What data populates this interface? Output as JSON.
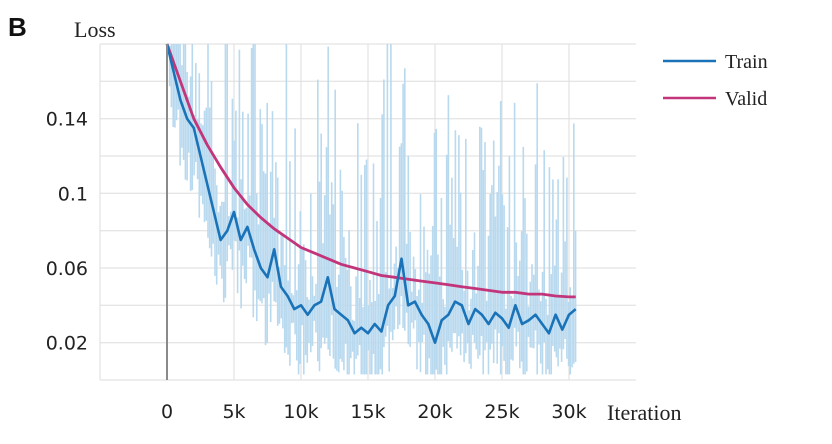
{
  "panel_label": "B",
  "chart_data": {
    "type": "line",
    "ylabel": "Loss",
    "xlabel": "Iteration",
    "xlim": [
      -5000,
      35000
    ],
    "ylim": [
      0.0,
      0.18
    ],
    "xticks": [
      0,
      5000,
      10000,
      15000,
      20000,
      25000,
      30000
    ],
    "xtick_labels": [
      "0",
      "5k",
      "10k",
      "15k",
      "20k",
      "25k",
      "30k"
    ],
    "yticks": [
      0.02,
      0.06,
      0.1,
      0.14
    ],
    "ytick_labels": [
      "0.02",
      "0.06",
      "0.1",
      "0.14"
    ],
    "grid": true,
    "legend_position": "top-right",
    "colors": {
      "train": "#1a73b8",
      "train_raw": "#b9d9ee",
      "valid": "#c2357a"
    },
    "series": [
      {
        "name": "Train",
        "x": [
          0,
          500,
          1000,
          1500,
          2000,
          2500,
          3000,
          3500,
          4000,
          4500,
          5000,
          5500,
          6000,
          6500,
          7000,
          7500,
          8000,
          8500,
          9000,
          9500,
          10000,
          10500,
          11000,
          11500,
          12000,
          12500,
          13000,
          13500,
          14000,
          14500,
          15000,
          15500,
          16000,
          16500,
          17000,
          17500,
          18000,
          18500,
          19000,
          19500,
          20000,
          20500,
          21000,
          21500,
          22000,
          22500,
          23000,
          23500,
          24000,
          24500,
          25000,
          25500,
          26000,
          26500,
          27000,
          27500,
          28000,
          28500,
          29000,
          29500,
          30000,
          30500
        ],
        "values": [
          0.18,
          0.165,
          0.15,
          0.14,
          0.135,
          0.12,
          0.105,
          0.09,
          0.075,
          0.08,
          0.09,
          0.075,
          0.082,
          0.07,
          0.06,
          0.055,
          0.07,
          0.05,
          0.045,
          0.038,
          0.04,
          0.035,
          0.04,
          0.042,
          0.055,
          0.038,
          0.035,
          0.032,
          0.025,
          0.028,
          0.025,
          0.03,
          0.026,
          0.04,
          0.045,
          0.065,
          0.04,
          0.042,
          0.035,
          0.03,
          0.02,
          0.032,
          0.035,
          0.042,
          0.04,
          0.03,
          0.038,
          0.035,
          0.03,
          0.036,
          0.033,
          0.028,
          0.04,
          0.03,
          0.032,
          0.035,
          0.03,
          0.025,
          0.035,
          0.027,
          0.035,
          0.038
        ]
      },
      {
        "name": "Valid",
        "x": [
          0,
          1000,
          2000,
          3000,
          4000,
          5000,
          6000,
          7000,
          8000,
          9000,
          10000,
          11000,
          12000,
          13000,
          14000,
          15000,
          16000,
          17000,
          18000,
          19000,
          20000,
          21000,
          22000,
          23000,
          24000,
          25000,
          26000,
          27000,
          28000,
          29000,
          30000,
          30500
        ],
        "values": [
          0.18,
          0.16,
          0.14,
          0.126,
          0.114,
          0.103,
          0.094,
          0.087,
          0.081,
          0.076,
          0.071,
          0.068,
          0.065,
          0.062,
          0.06,
          0.058,
          0.056,
          0.055,
          0.054,
          0.053,
          0.052,
          0.051,
          0.05,
          0.049,
          0.048,
          0.047,
          0.047,
          0.046,
          0.046,
          0.045,
          0.0445,
          0.0445
        ]
      }
    ]
  }
}
